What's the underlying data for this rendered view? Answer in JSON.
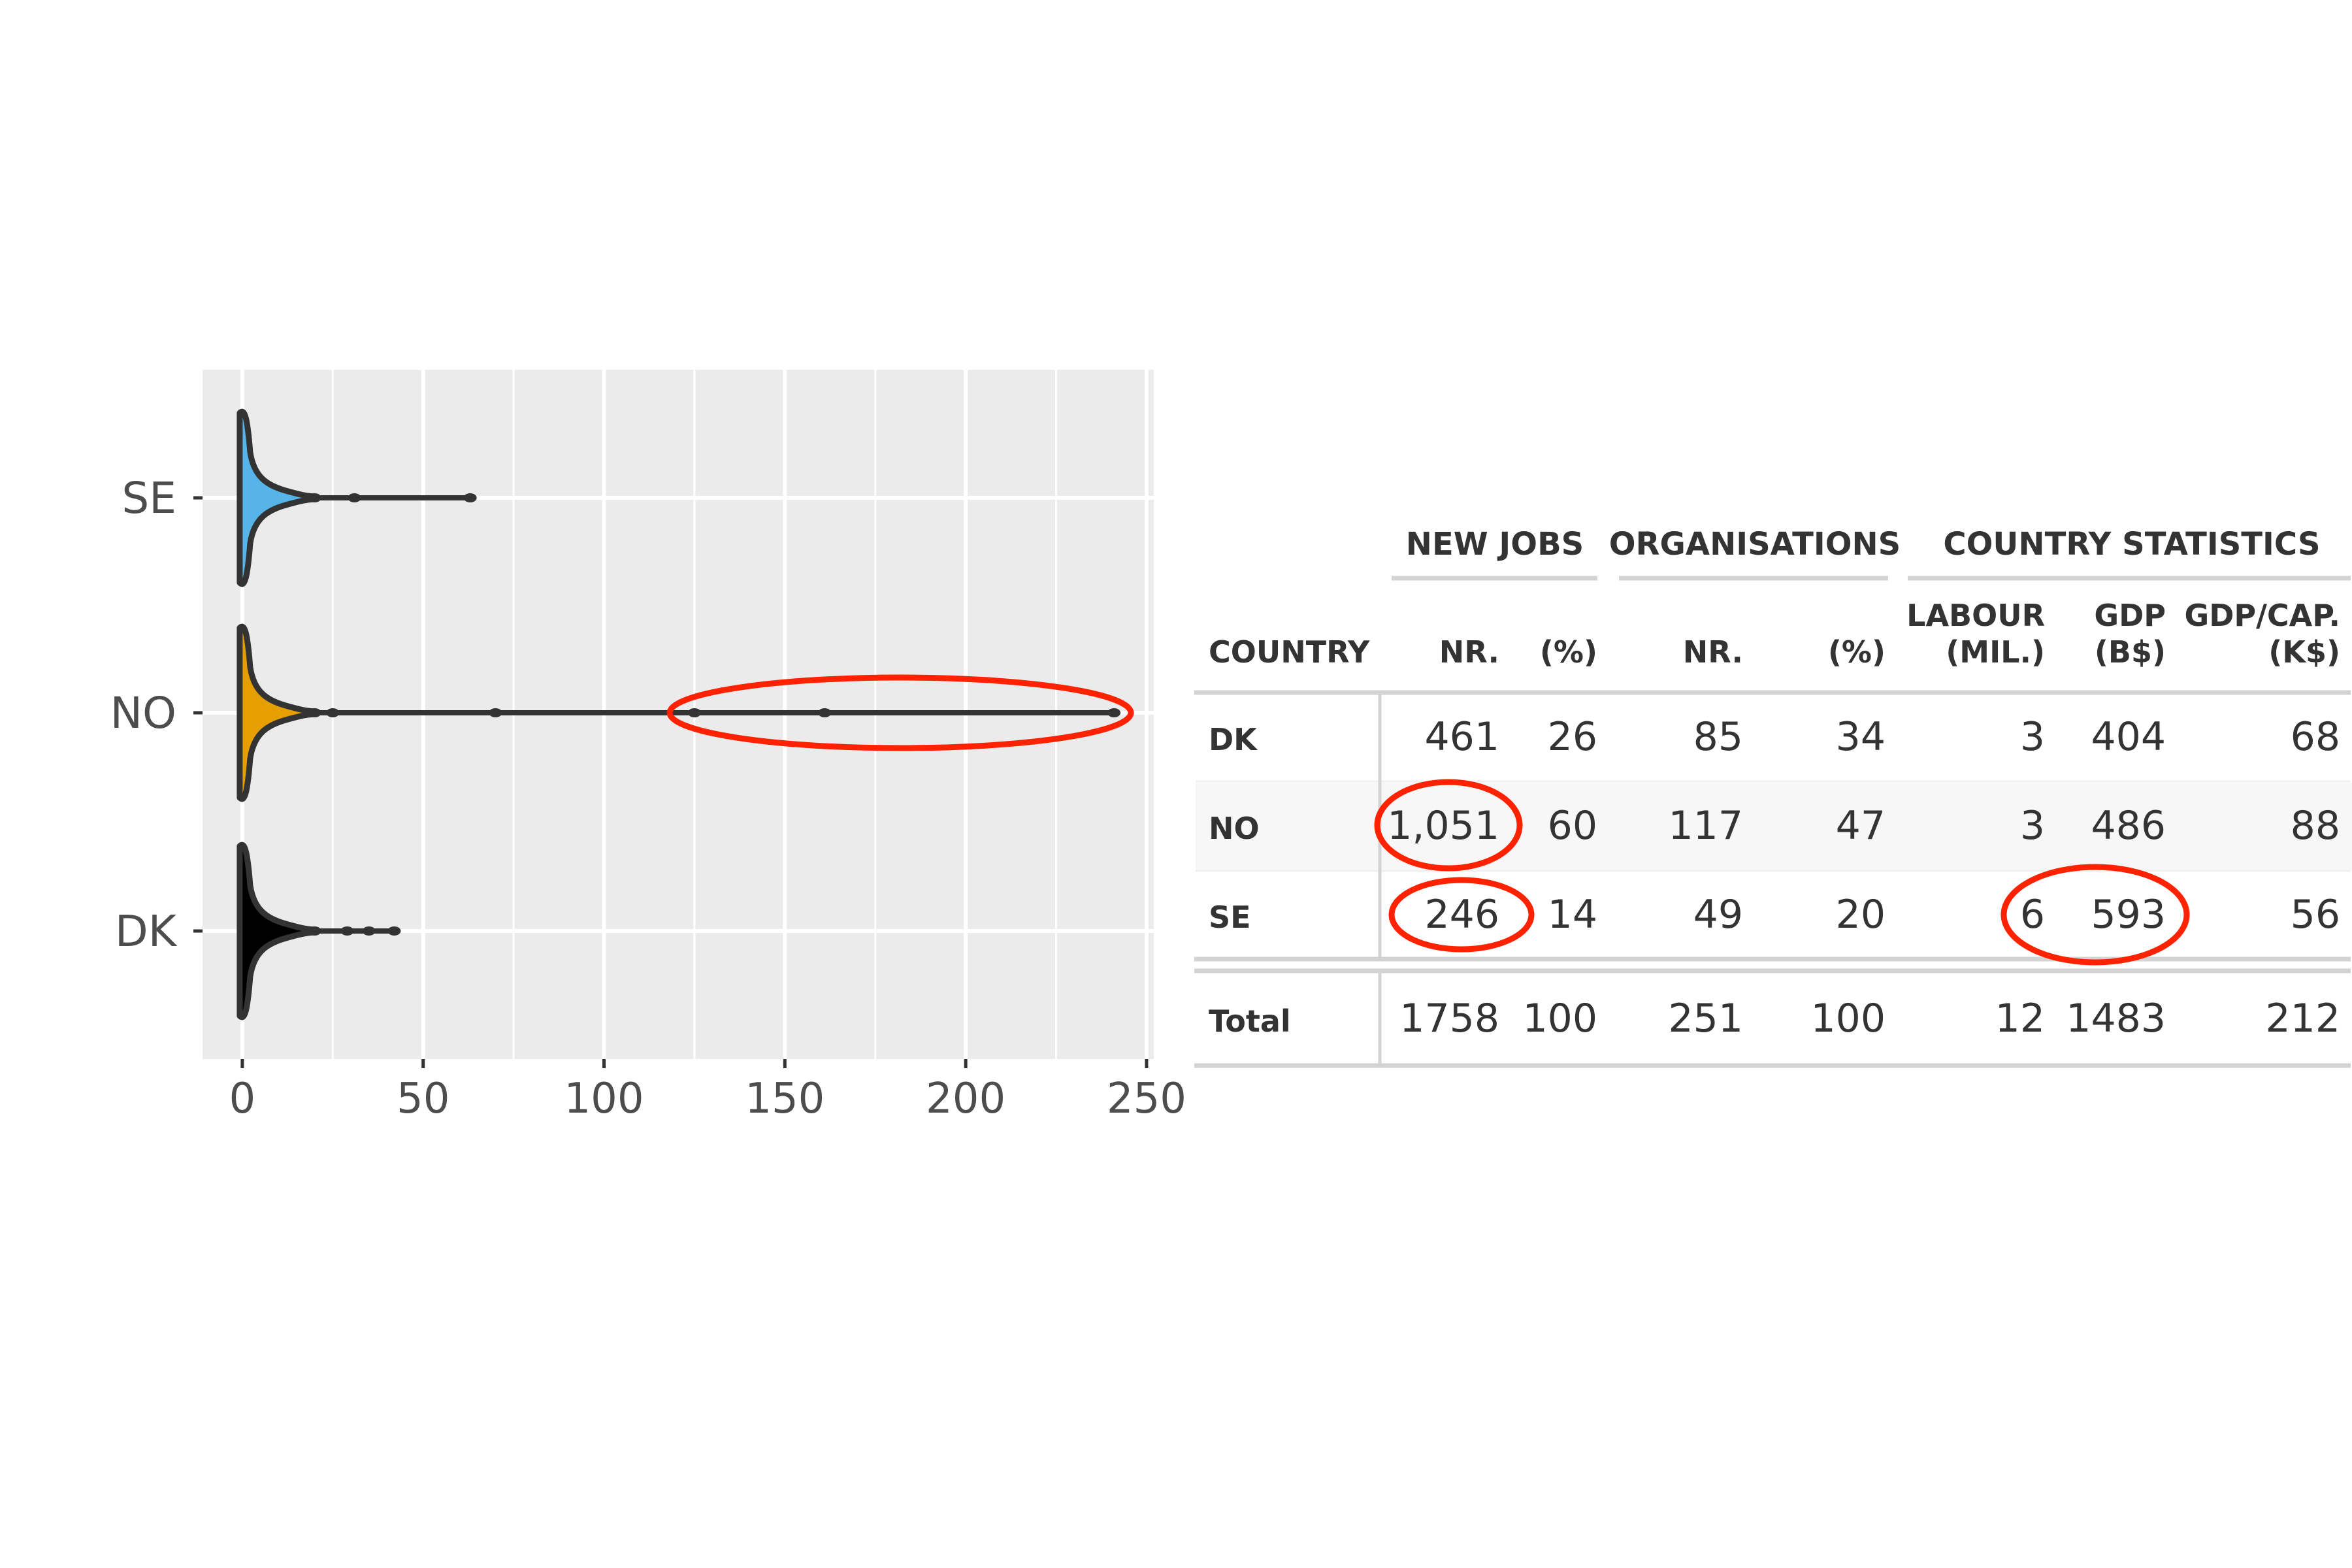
{
  "chart_data": [
    {
      "type": "violin",
      "orientation": "horizontal",
      "categories": [
        "SE",
        "NO",
        "DK"
      ],
      "x_ticks": [
        0,
        50,
        100,
        150,
        200,
        250
      ],
      "xlim": [
        -11,
        252
      ],
      "grid": true,
      "title": "",
      "xlabel": "",
      "ylabel": "",
      "series": [
        {
          "category": "SE",
          "color": "#56B4E9",
          "max": 63,
          "outliers": [
            20,
            31,
            63
          ]
        },
        {
          "category": "NO",
          "color": "#E69F00",
          "max": 241,
          "outliers": [
            20,
            25,
            70,
            125,
            161,
            241
          ]
        },
        {
          "category": "DK",
          "color": "#000000",
          "max": 42,
          "outliers": [
            20,
            29,
            35,
            42
          ]
        }
      ],
      "annotation": {
        "type": "ellipse",
        "color": "#ff2200",
        "x_range": [
          119,
          250
        ],
        "category": "NO"
      }
    },
    {
      "type": "table",
      "group_headers": [
        "NEW JOBS",
        "ORGANISATIONS",
        "COUNTRY STATISTICS"
      ],
      "columns": [
        {
          "key": "country",
          "label": [
            "COUNTRY"
          ]
        },
        {
          "key": "jobs_nr",
          "label": [
            "NR."
          ]
        },
        {
          "key": "jobs_pct",
          "label": [
            "(%)"
          ]
        },
        {
          "key": "org_nr",
          "label": [
            "NR."
          ]
        },
        {
          "key": "org_pct",
          "label": [
            "(%)"
          ]
        },
        {
          "key": "labour",
          "label": [
            "LABOUR",
            "(MIL.)"
          ]
        },
        {
          "key": "gdp",
          "label": [
            "GDP",
            "(B$)"
          ]
        },
        {
          "key": "gdpcap",
          "label": [
            "GDP/CAP.",
            "(K$)"
          ]
        }
      ],
      "rows": [
        [
          "DK",
          "461",
          "26",
          "85",
          "34",
          "3",
          "404",
          "68"
        ],
        [
          "NO",
          "1,051",
          "60",
          "117",
          "47",
          "3",
          "486",
          "88"
        ],
        [
          "SE",
          "246",
          "14",
          "49",
          "20",
          "6",
          "593",
          "56"
        ]
      ],
      "total": [
        "Total",
        "1758",
        "100",
        "251",
        "100",
        "12",
        "1483",
        "212"
      ],
      "highlighted_cells": [
        {
          "row": 1,
          "column": "jobs_nr"
        },
        {
          "row": 2,
          "column": "jobs_nr"
        },
        {
          "row": 2,
          "column": "labour"
        },
        {
          "row": 2,
          "column": "gdp"
        }
      ],
      "highlight_color": "#ff2200"
    }
  ]
}
